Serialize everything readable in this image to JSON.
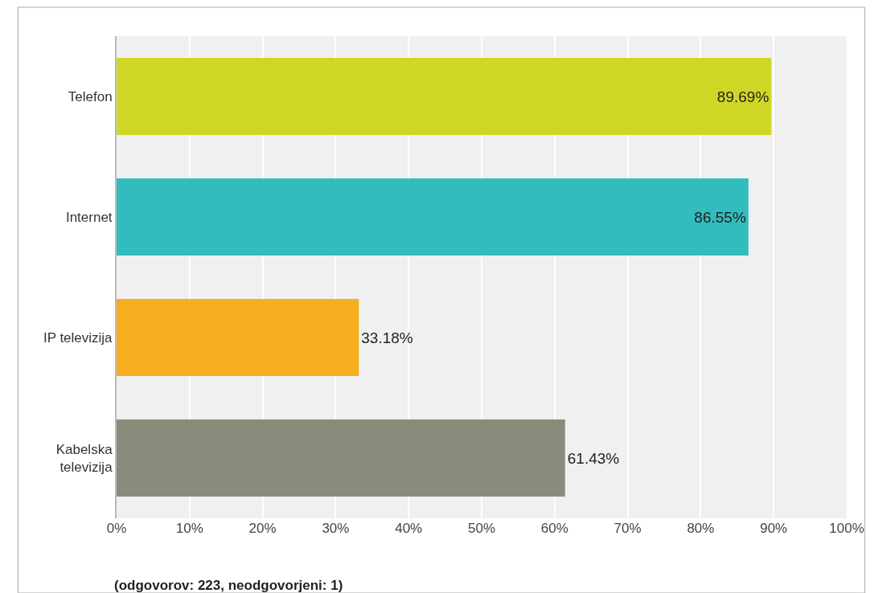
{
  "chart_data": {
    "type": "bar",
    "orientation": "horizontal",
    "categories": [
      "Telefon",
      "Internet",
      "IP televizija",
      "Kabelska televizija"
    ],
    "values": [
      89.69,
      86.55,
      33.18,
      61.43
    ],
    "colors": [
      "#cfd726",
      "#33bcbe",
      "#f7ae1e",
      "#8b8b7b"
    ],
    "value_labels": [
      "89.69%",
      "86.55%",
      "33.18%",
      "61.43%"
    ],
    "xlim": [
      0,
      100
    ],
    "xticks": [
      {
        "value": 0,
        "label": "0%"
      },
      {
        "value": 10,
        "label": "10%"
      },
      {
        "value": 20,
        "label": "20%"
      },
      {
        "value": 30,
        "label": "30%"
      },
      {
        "value": 40,
        "label": "40%"
      },
      {
        "value": 50,
        "label": "50%"
      },
      {
        "value": 60,
        "label": "60%"
      },
      {
        "value": 70,
        "label": "70%"
      },
      {
        "value": 80,
        "label": "80%"
      },
      {
        "value": 90,
        "label": "90%"
      },
      {
        "value": 100,
        "label": "100%"
      }
    ],
    "grid": "x",
    "legend": false,
    "annotations": [
      "(odgovorov: 223, neodgovorjeni: 1)"
    ]
  }
}
